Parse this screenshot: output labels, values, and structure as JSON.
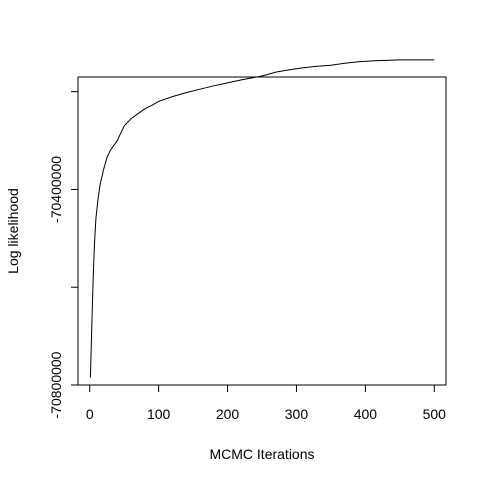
{
  "chart_data": {
    "type": "line",
    "title": "",
    "xlabel": "MCMC Iterations",
    "ylabel": "Log likelihood",
    "xlim": [
      -17,
      517
    ],
    "ylim": [
      -70800000,
      -70170000
    ],
    "x_ticks": [
      0,
      100,
      200,
      300,
      400,
      500
    ],
    "x_tick_labels": [
      "0",
      "100",
      "200",
      "300",
      "400",
      "500"
    ],
    "y_ticks": [
      -70800000,
      -70600000,
      -70400000,
      -70200000
    ],
    "y_tick_labels": [
      "-70800000",
      "",
      "-70400000",
      ""
    ],
    "grid": false,
    "legend": "none",
    "series": [
      {
        "color": "#000000",
        "x": [
          1,
          3,
          5,
          7,
          9,
          12,
          15,
          20,
          25,
          30,
          35,
          40,
          45,
          50,
          60,
          70,
          80,
          90,
          100,
          120,
          140,
          160,
          180,
          200,
          220,
          250,
          270,
          290,
          310,
          330,
          350,
          370,
          390,
          410,
          430,
          450,
          470,
          490,
          500
        ],
        "y": [
          -70785000,
          -70680000,
          -70580000,
          -70510000,
          -70460000,
          -70420000,
          -70390000,
          -70360000,
          -70335000,
          -70320000,
          -70310000,
          -70300000,
          -70285000,
          -70270000,
          -70255000,
          -70245000,
          -70235000,
          -70228000,
          -70220000,
          -70210000,
          -70202000,
          -70195000,
          -70188000,
          -70182000,
          -70176000,
          -70168000,
          -70160000,
          -70155000,
          -70151000,
          -70148000,
          -70146000,
          -70142000,
          -70139000,
          -70137000,
          -70136000,
          -70135000,
          -70135000,
          -70135000,
          -70135000
        ]
      }
    ]
  }
}
